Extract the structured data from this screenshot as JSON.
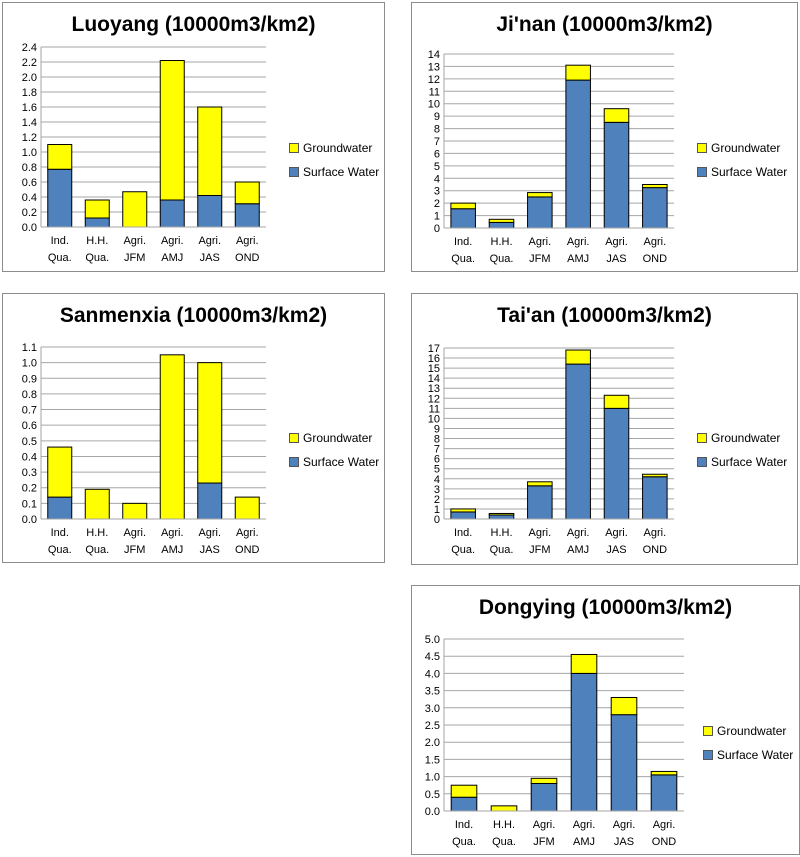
{
  "colors": {
    "surface": "#4f81bd",
    "ground": "#ffff00",
    "grid": "#a6a6a6",
    "outline": "#000000"
  },
  "chart_data": [
    {
      "type": "bar",
      "stacked": true,
      "title": "Luoyang (10000m3/km2)",
      "categories": [
        [
          "Ind.",
          "Qua."
        ],
        [
          "H.H.",
          "Qua."
        ],
        [
          "Agri.",
          "JFM"
        ],
        [
          "Agri.",
          "AMJ"
        ],
        [
          "Agri.",
          "JAS"
        ],
        [
          "Agri.",
          "OND"
        ]
      ],
      "series": [
        {
          "name": "Surface Water",
          "values": [
            0.77,
            0.12,
            0.0,
            0.36,
            0.42,
            0.31
          ]
        },
        {
          "name": "Groundwater",
          "values": [
            0.33,
            0.24,
            0.47,
            1.86,
            1.18,
            0.29
          ]
        }
      ],
      "ylim": [
        0,
        2.4
      ],
      "ystep": 0.2,
      "ydec": 1,
      "grid": true,
      "legend": "right"
    },
    {
      "type": "bar",
      "stacked": true,
      "title": "Ji'nan (10000m3/km2)",
      "categories": [
        [
          "Ind.",
          "Qua."
        ],
        [
          "H.H.",
          "Qua."
        ],
        [
          "Agri.",
          "JFM"
        ],
        [
          "Agri.",
          "AMJ"
        ],
        [
          "Agri.",
          "JAS"
        ],
        [
          "Agri.",
          "OND"
        ]
      ],
      "series": [
        {
          "name": "Surface Water",
          "values": [
            1.55,
            0.45,
            2.5,
            11.9,
            8.5,
            3.25
          ]
        },
        {
          "name": "Groundwater",
          "values": [
            0.45,
            0.25,
            0.35,
            1.2,
            1.1,
            0.25
          ]
        }
      ],
      "ylim": [
        0,
        14
      ],
      "ystep": 1,
      "ydec": 0,
      "grid": true,
      "legend": "right"
    },
    {
      "type": "bar",
      "stacked": true,
      "title": "Sanmenxia (10000m3/km2)",
      "categories": [
        [
          "Ind.",
          "Qua."
        ],
        [
          "H.H.",
          "Qua."
        ],
        [
          "Agri.",
          "JFM"
        ],
        [
          "Agri.",
          "AMJ"
        ],
        [
          "Agri.",
          "JAS"
        ],
        [
          "Agri.",
          "OND"
        ]
      ],
      "series": [
        {
          "name": "Surface Water",
          "values": [
            0.14,
            0.0,
            0.0,
            0.0,
            0.23,
            0.0
          ]
        },
        {
          "name": "Groundwater",
          "values": [
            0.32,
            0.19,
            0.1,
            1.05,
            0.77,
            0.14
          ]
        }
      ],
      "ylim": [
        0,
        1.1
      ],
      "ystep": 0.1,
      "ydec": 1,
      "grid": true,
      "legend": "right"
    },
    {
      "type": "bar",
      "stacked": true,
      "title": "Tai'an (10000m3/km2)",
      "categories": [
        [
          "Ind.",
          "Qua."
        ],
        [
          "H.H.",
          "Qua."
        ],
        [
          "Agri.",
          "JFM"
        ],
        [
          "Agri.",
          "AMJ"
        ],
        [
          "Agri.",
          "JAS"
        ],
        [
          "Agri.",
          "OND"
        ]
      ],
      "series": [
        {
          "name": "Surface Water",
          "values": [
            0.7,
            0.4,
            3.3,
            15.4,
            11.0,
            4.2
          ]
        },
        {
          "name": "Groundwater",
          "values": [
            0.3,
            0.15,
            0.4,
            1.4,
            1.3,
            0.25
          ]
        }
      ],
      "ylim": [
        0,
        17
      ],
      "ystep": 1,
      "ydec": 0,
      "grid": true,
      "legend": "right"
    },
    {
      "type": "bar",
      "stacked": true,
      "title": "Dongying (10000m3/km2)",
      "categories": [
        [
          "Ind.",
          "Qua."
        ],
        [
          "H.H.",
          "Qua."
        ],
        [
          "Agri.",
          "JFM"
        ],
        [
          "Agri.",
          "AMJ"
        ],
        [
          "Agri.",
          "JAS"
        ],
        [
          "Agri.",
          "OND"
        ]
      ],
      "series": [
        {
          "name": "Surface Water",
          "values": [
            0.4,
            0.0,
            0.8,
            4.0,
            2.8,
            1.05
          ]
        },
        {
          "name": "Groundwater",
          "values": [
            0.35,
            0.15,
            0.15,
            0.55,
            0.5,
            0.1
          ]
        }
      ],
      "ylim": [
        0,
        5
      ],
      "ystep": 0.5,
      "ydec": 1,
      "grid": true,
      "legend": "right"
    }
  ]
}
